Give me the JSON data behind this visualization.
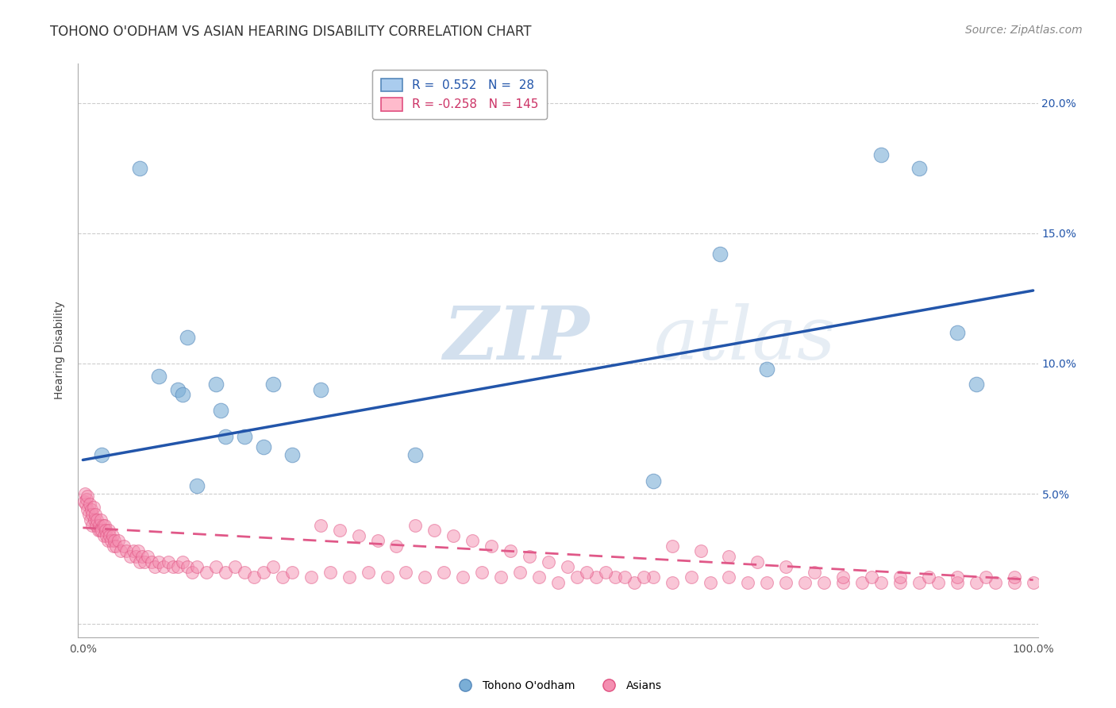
{
  "title": "TOHONO O'ODHAM VS ASIAN HEARING DISABILITY CORRELATION CHART",
  "source": "Source: ZipAtlas.com",
  "ylabel": "Hearing Disability",
  "xlim": [
    -0.005,
    1.005
  ],
  "ylim": [
    -0.005,
    0.215
  ],
  "xticklabels_show": [
    "0.0%",
    "100.0%"
  ],
  "xticklabels_pos": [
    0.0,
    1.0
  ],
  "yticks_right": [
    0.05,
    0.1,
    0.15,
    0.2
  ],
  "yticklabels_right": [
    "5.0%",
    "10.0%",
    "15.0%",
    "20.0%"
  ],
  "blue_color": "#7aaed6",
  "blue_edge_color": "#5588bb",
  "pink_color": "#f48fb1",
  "pink_edge_color": "#e05080",
  "blue_line_color": "#2255aa",
  "pink_line_color": "#e05888",
  "watermark_zip": "ZIP",
  "watermark_atlas": "atlas",
  "blue_scatter_x": [
    0.02,
    0.06,
    0.08,
    0.1,
    0.105,
    0.11,
    0.12,
    0.14,
    0.145,
    0.15,
    0.17,
    0.19,
    0.2,
    0.22,
    0.25,
    0.35,
    0.6,
    0.67,
    0.72,
    0.84,
    0.88,
    0.92,
    0.94
  ],
  "blue_scatter_y": [
    0.065,
    0.175,
    0.095,
    0.09,
    0.088,
    0.11,
    0.053,
    0.092,
    0.082,
    0.072,
    0.072,
    0.068,
    0.092,
    0.065,
    0.09,
    0.065,
    0.055,
    0.142,
    0.098,
    0.18,
    0.175,
    0.112,
    0.092
  ],
  "pink_scatter_x": [
    0.001,
    0.002,
    0.003,
    0.004,
    0.005,
    0.005,
    0.006,
    0.007,
    0.008,
    0.009,
    0.01,
    0.01,
    0.011,
    0.012,
    0.013,
    0.014,
    0.015,
    0.016,
    0.017,
    0.018,
    0.019,
    0.02,
    0.021,
    0.022,
    0.023,
    0.024,
    0.025,
    0.026,
    0.027,
    0.028,
    0.03,
    0.031,
    0.032,
    0.033,
    0.035,
    0.037,
    0.04,
    0.043,
    0.046,
    0.05,
    0.053,
    0.056,
    0.058,
    0.06,
    0.062,
    0.065,
    0.068,
    0.072,
    0.076,
    0.08,
    0.085,
    0.09,
    0.095,
    0.1,
    0.105,
    0.11,
    0.115,
    0.12,
    0.13,
    0.14,
    0.15,
    0.16,
    0.17,
    0.18,
    0.19,
    0.2,
    0.21,
    0.22,
    0.24,
    0.26,
    0.28,
    0.3,
    0.32,
    0.34,
    0.36,
    0.38,
    0.4,
    0.42,
    0.44,
    0.46,
    0.48,
    0.5,
    0.52,
    0.54,
    0.56,
    0.58,
    0.6,
    0.62,
    0.64,
    0.66,
    0.68,
    0.7,
    0.72,
    0.74,
    0.76,
    0.78,
    0.8,
    0.82,
    0.84,
    0.86,
    0.88,
    0.9,
    0.92,
    0.94,
    0.96,
    0.98,
    1.0,
    0.35,
    0.37,
    0.39,
    0.41,
    0.43,
    0.45,
    0.47,
    0.49,
    0.51,
    0.53,
    0.55,
    0.57,
    0.59,
    0.62,
    0.65,
    0.68,
    0.71,
    0.74,
    0.77,
    0.8,
    0.83,
    0.86,
    0.89,
    0.92,
    0.95,
    0.98,
    0.25,
    0.27,
    0.29,
    0.31,
    0.33
  ],
  "pink_scatter_y": [
    0.047,
    0.05,
    0.046,
    0.048,
    0.049,
    0.044,
    0.042,
    0.046,
    0.04,
    0.044,
    0.038,
    0.042,
    0.045,
    0.04,
    0.042,
    0.038,
    0.04,
    0.036,
    0.038,
    0.036,
    0.04,
    0.036,
    0.038,
    0.034,
    0.038,
    0.036,
    0.034,
    0.032,
    0.036,
    0.034,
    0.032,
    0.034,
    0.03,
    0.032,
    0.03,
    0.032,
    0.028,
    0.03,
    0.028,
    0.026,
    0.028,
    0.026,
    0.028,
    0.024,
    0.026,
    0.024,
    0.026,
    0.024,
    0.022,
    0.024,
    0.022,
    0.024,
    0.022,
    0.022,
    0.024,
    0.022,
    0.02,
    0.022,
    0.02,
    0.022,
    0.02,
    0.022,
    0.02,
    0.018,
    0.02,
    0.022,
    0.018,
    0.02,
    0.018,
    0.02,
    0.018,
    0.02,
    0.018,
    0.02,
    0.018,
    0.02,
    0.018,
    0.02,
    0.018,
    0.02,
    0.018,
    0.016,
    0.018,
    0.018,
    0.018,
    0.016,
    0.018,
    0.016,
    0.018,
    0.016,
    0.018,
    0.016,
    0.016,
    0.016,
    0.016,
    0.016,
    0.016,
    0.016,
    0.016,
    0.016,
    0.016,
    0.016,
    0.016,
    0.016,
    0.016,
    0.016,
    0.016,
    0.038,
    0.036,
    0.034,
    0.032,
    0.03,
    0.028,
    0.026,
    0.024,
    0.022,
    0.02,
    0.02,
    0.018,
    0.018,
    0.03,
    0.028,
    0.026,
    0.024,
    0.022,
    0.02,
    0.018,
    0.018,
    0.018,
    0.018,
    0.018,
    0.018,
    0.018,
    0.038,
    0.036,
    0.034,
    0.032,
    0.03
  ],
  "blue_line_x0": 0.0,
  "blue_line_y0": 0.063,
  "blue_line_x1": 1.0,
  "blue_line_y1": 0.128,
  "pink_line_x0": 0.0,
  "pink_line_y0": 0.037,
  "pink_line_x1": 1.0,
  "pink_line_y1": 0.017,
  "bg_color": "#ffffff",
  "grid_color": "#cccccc",
  "title_fontsize": 12,
  "source_fontsize": 10,
  "axis_label_fontsize": 10,
  "tick_fontsize": 10,
  "legend_fontsize": 11
}
